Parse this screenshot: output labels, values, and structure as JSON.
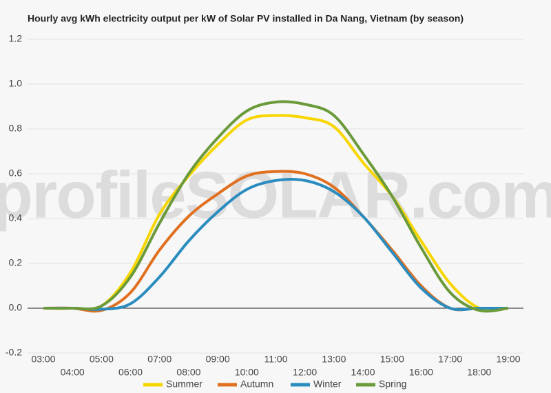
{
  "chart_data": {
    "type": "line",
    "title": "Hourly avg kWh electricity output per kW of Solar PV installed in Da Nang, Vietnam (by season)",
    "watermark": "profileSOLAR.com",
    "categories": [
      "03:00",
      "04:00",
      "05:00",
      "06:00",
      "07:00",
      "08:00",
      "09:00",
      "10:00",
      "11:00",
      "12:00",
      "13:00",
      "14:00",
      "15:00",
      "16:00",
      "17:00",
      "18:00",
      "19:00"
    ],
    "series": [
      {
        "name": "Summer",
        "color": "#f7d600",
        "values": [
          0,
          0,
          0.01,
          0.16,
          0.42,
          0.59,
          0.73,
          0.84,
          0.86,
          0.85,
          0.81,
          0.65,
          0.5,
          0.3,
          0.11,
          0,
          0
        ]
      },
      {
        "name": "Autumn",
        "color": "#e07020",
        "values": [
          0,
          0,
          -0.01,
          0.07,
          0.26,
          0.41,
          0.51,
          0.59,
          0.61,
          0.6,
          0.54,
          0.41,
          0.26,
          0.1,
          0,
          0,
          0
        ]
      },
      {
        "name": "Winter",
        "color": "#2a8cbf",
        "values": [
          0,
          0,
          -0.005,
          0.02,
          0.14,
          0.3,
          0.43,
          0.53,
          0.57,
          0.57,
          0.52,
          0.41,
          0.25,
          0.09,
          0,
          0,
          0
        ]
      },
      {
        "name": "Spring",
        "color": "#6a9a3a",
        "values": [
          0,
          0,
          0.01,
          0.14,
          0.38,
          0.6,
          0.76,
          0.88,
          0.92,
          0.91,
          0.86,
          0.69,
          0.5,
          0.27,
          0.07,
          -0.01,
          0
        ]
      }
    ],
    "ylim": [
      -0.2,
      1.2
    ],
    "yticks": [
      -0.2,
      {
        "value": 0,
        "label": "0.0"
      },
      0.2,
      0.4,
      0.6,
      0.8,
      {
        "value": 1,
        "label": "1.0"
      },
      1.2
    ],
    "grid": true,
    "legend": "bottom"
  }
}
